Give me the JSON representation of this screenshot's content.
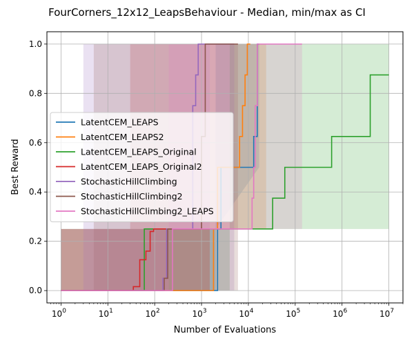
{
  "chart_data": {
    "type": "line",
    "title": "FourCorners_12x12_LeapsBehaviour - Median, min/max as CI",
    "xlabel": "Number of Evaluations",
    "ylabel": "Best Reward",
    "x_scale": "log",
    "xlim": [
      0.5,
      20000000
    ],
    "ylim": [
      -0.05,
      1.05
    ],
    "x_ticks": [
      {
        "value": 1,
        "base": "10",
        "exp": "0"
      },
      {
        "value": 10,
        "base": "10",
        "exp": "1"
      },
      {
        "value": 100,
        "base": "10",
        "exp": "2"
      },
      {
        "value": 1000,
        "base": "10",
        "exp": "3"
      },
      {
        "value": 10000,
        "base": "10",
        "exp": "4"
      },
      {
        "value": 100000,
        "base": "10",
        "exp": "5"
      },
      {
        "value": 1000000,
        "base": "10",
        "exp": "6"
      },
      {
        "value": 10000000,
        "base": "10",
        "exp": "7"
      }
    ],
    "y_ticks": [
      "0.0",
      "0.2",
      "0.4",
      "0.6",
      "0.8",
      "1.0"
    ],
    "grid": true,
    "legend_position": "center-left",
    "series": [
      {
        "name": "LatentCEM_LEAPS",
        "color": "#1f77b4",
        "median": [
          [
            1,
            0
          ],
          [
            2200,
            0
          ],
          [
            2200,
            0.25
          ],
          [
            2600,
            0.25
          ],
          [
            2600,
            0.5
          ],
          [
            13000,
            0.5
          ],
          [
            13000,
            0.625
          ],
          [
            15500,
            0.625
          ],
          [
            15500,
            1.0
          ],
          [
            17000,
            1.0
          ]
        ],
        "band": {
          "x": [
            1,
            2000,
            2000,
            17000
          ],
          "lower": [
            0,
            0,
            0.25,
            0.5
          ],
          "upper": [
            0.25,
            0.25,
            1.0,
            1.0
          ]
        }
      },
      {
        "name": "LatentCEM_LEAPS2",
        "color": "#ff7f0e",
        "median": [
          [
            1,
            0
          ],
          [
            1800,
            0
          ],
          [
            1800,
            0.25
          ],
          [
            2200,
            0.25
          ],
          [
            2200,
            0.5
          ],
          [
            6500,
            0.5
          ],
          [
            6500,
            0.625
          ],
          [
            7500,
            0.625
          ],
          [
            7500,
            0.75
          ],
          [
            8500,
            0.75
          ],
          [
            8500,
            0.875
          ],
          [
            9500,
            0.875
          ],
          [
            9500,
            1.0
          ],
          [
            11000,
            1.0
          ]
        ],
        "band": {
          "x": [
            1,
            1500,
            1500,
            24000
          ],
          "lower": [
            0,
            0,
            0.25,
            0.25
          ],
          "upper": [
            0.25,
            0.25,
            1.0,
            1.0
          ]
        }
      },
      {
        "name": "LatentCEM_LEAPS_Original",
        "color": "#2ca02c",
        "median": [
          [
            1,
            0
          ],
          [
            60,
            0
          ],
          [
            60,
            0.25
          ],
          [
            33000,
            0.25
          ],
          [
            33000,
            0.375
          ],
          [
            60000,
            0.375
          ],
          [
            60000,
            0.5
          ],
          [
            600000,
            0.5
          ],
          [
            600000,
            0.625
          ],
          [
            4000000,
            0.625
          ],
          [
            4000000,
            0.875
          ],
          [
            10000000,
            0.875
          ]
        ],
        "band": {
          "x": [
            1,
            60,
            60,
            4000,
            4000,
            80000,
            80000,
            10000000
          ],
          "lower": [
            0,
            0,
            0.0,
            0.0,
            0.25,
            0.25,
            0.25,
            0.25
          ],
          "upper": [
            0.25,
            0.25,
            0.25,
            0.25,
            1.0,
            1.0,
            1.0,
            1.0
          ]
        }
      },
      {
        "name": "LatentCEM_LEAPS_Original2",
        "color": "#d62728",
        "median": [
          [
            1,
            0
          ],
          [
            35,
            0
          ],
          [
            35,
            0.016
          ],
          [
            48,
            0.016
          ],
          [
            48,
            0.125
          ],
          [
            65,
            0.125
          ],
          [
            65,
            0.16
          ],
          [
            80,
            0.16
          ],
          [
            80,
            0.24
          ],
          [
            95,
            0.24
          ],
          [
            95,
            0.25
          ],
          [
            1500,
            0.25
          ]
        ],
        "band": {
          "x": [
            1,
            30,
            30,
            1500
          ],
          "lower": [
            0,
            0,
            0,
            0
          ],
          "upper": [
            0.25,
            0.25,
            1.0,
            1.0
          ]
        }
      },
      {
        "name": "StochasticHillClimbing",
        "color": "#9467bd",
        "median": [
          [
            1,
            0
          ],
          [
            150,
            0
          ],
          [
            150,
            0.05
          ],
          [
            180,
            0.05
          ],
          [
            180,
            0.25
          ],
          [
            650,
            0.25
          ],
          [
            650,
            0.75
          ],
          [
            750,
            0.75
          ],
          [
            750,
            0.875
          ],
          [
            850,
            0.875
          ],
          [
            850,
            1.0
          ],
          [
            5000,
            1.0
          ]
        ],
        "band": {
          "x": [
            1,
            3,
            3,
            5000
          ],
          "lower": [
            0,
            0,
            0,
            0
          ],
          "upper": [
            0.0,
            0.0,
            1.0,
            1.0
          ]
        }
      },
      {
        "name": "StochasticHillClimbing2",
        "color": "#8c564b",
        "median": [
          [
            1,
            0
          ],
          [
            160,
            0
          ],
          [
            160,
            0.05
          ],
          [
            190,
            0.05
          ],
          [
            190,
            0.25
          ],
          [
            1000,
            0.25
          ],
          [
            1000,
            0.625
          ],
          [
            1200,
            0.625
          ],
          [
            1200,
            1.0
          ],
          [
            6000,
            1.0
          ]
        ],
        "band": {
          "x": [
            1,
            5,
            5,
            6000
          ],
          "lower": [
            0,
            0,
            0,
            0
          ],
          "upper": [
            0.0,
            0.0,
            1.0,
            1.0
          ]
        }
      },
      {
        "name": "StochasticHillClimbing2_LEAPS",
        "color": "#e377c2",
        "median": [
          [
            1,
            0
          ],
          [
            240,
            0
          ],
          [
            240,
            0.25
          ],
          [
            12000,
            0.25
          ],
          [
            12000,
            0.375
          ],
          [
            13000,
            0.375
          ],
          [
            13000,
            0.5
          ],
          [
            14000,
            0.5
          ],
          [
            14000,
            0.75
          ],
          [
            15500,
            0.75
          ],
          [
            15500,
            1.0
          ],
          [
            140000,
            1.0
          ]
        ],
        "band": {
          "x": [
            1,
            200,
            200,
            140000
          ],
          "lower": [
            0,
            0,
            0.25,
            0.25
          ],
          "upper": [
            0.25,
            0.25,
            1.0,
            1.0
          ]
        }
      }
    ]
  }
}
